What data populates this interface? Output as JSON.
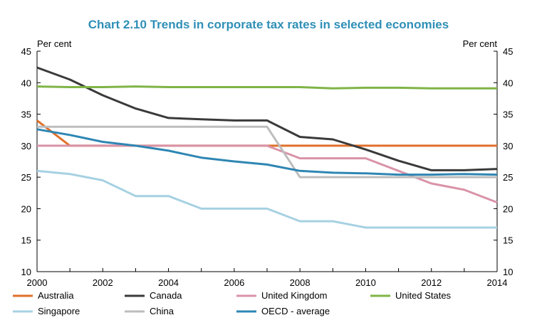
{
  "chart_data": {
    "type": "line",
    "title": "Chart 2.10 Trends in corporate tax rates in selected economies",
    "ylabel_left": "Per cent",
    "ylabel_right": "Per cent",
    "ylim": [
      10,
      45
    ],
    "yticks": [
      10,
      15,
      20,
      25,
      30,
      35,
      40,
      45
    ],
    "xlim": [
      2000,
      2014
    ],
    "xticks": [
      2000,
      2002,
      2004,
      2006,
      2008,
      2010,
      2012,
      2014
    ],
    "grid": false,
    "legend_position": "bottom",
    "x": [
      2000,
      2001,
      2002,
      2003,
      2004,
      2005,
      2006,
      2007,
      2008,
      2009,
      2010,
      2011,
      2012,
      2013,
      2014
    ],
    "series": [
      {
        "name": "Australia",
        "color": "#e0702a",
        "values": [
          34,
          30,
          30,
          30,
          30,
          30,
          30,
          30,
          30,
          30,
          30,
          30,
          30,
          30,
          30
        ]
      },
      {
        "name": "Canada",
        "color": "#3a3a3a",
        "values": [
          42.4,
          40.5,
          38,
          35.9,
          34.4,
          34.2,
          34,
          34,
          31.4,
          31,
          29.4,
          27.6,
          26.1,
          26.1,
          26.3
        ]
      },
      {
        "name": "United Kingdom",
        "color": "#d993a8",
        "values": [
          30,
          30,
          30,
          30,
          30,
          30,
          30,
          30,
          28,
          28,
          28,
          26,
          24,
          23,
          21
        ]
      },
      {
        "name": "United States",
        "color": "#7fb446",
        "values": [
          39.4,
          39.3,
          39.3,
          39.4,
          39.3,
          39.3,
          39.3,
          39.3,
          39.3,
          39.1,
          39.2,
          39.2,
          39.1,
          39.1,
          39.1
        ]
      },
      {
        "name": "Singapore",
        "color": "#a6d1e2",
        "values": [
          26,
          25.5,
          24.5,
          22,
          22,
          20,
          20,
          20,
          18,
          18,
          17,
          17,
          17,
          17,
          17
        ]
      },
      {
        "name": "China",
        "color": "#bdbdbd",
        "values": [
          33,
          33,
          33,
          33,
          33,
          33,
          33,
          33,
          25,
          25,
          25,
          25,
          25,
          25,
          25
        ]
      },
      {
        "name": "OECD - average",
        "color": "#2e86b3",
        "values": [
          32.6,
          31.7,
          30.6,
          30,
          29.2,
          28.1,
          27.5,
          27,
          26,
          25.7,
          25.6,
          25.4,
          25.4,
          25.5,
          25.4
        ]
      }
    ]
  }
}
